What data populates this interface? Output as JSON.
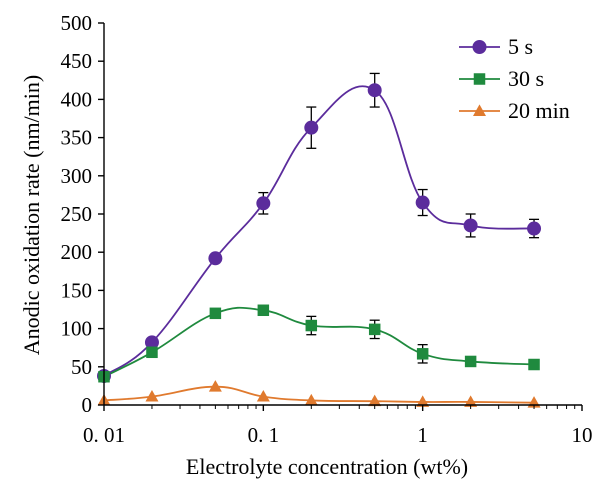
{
  "chart_data": {
    "type": "scatter",
    "x_scale": "log",
    "xlim": [
      0.01,
      10
    ],
    "ylim": [
      0,
      500
    ],
    "xlabel": "Electrolyte concentration (wt%)",
    "ylabel": "Anodic oxidation rate (nm/min)",
    "x_tick_labels": [
      "0. 01",
      "0. 1",
      "1",
      "10"
    ],
    "x_tick_values": [
      0.01,
      0.1,
      1,
      10
    ],
    "y_tick_values": [
      0,
      50,
      100,
      150,
      200,
      250,
      300,
      350,
      400,
      450,
      500
    ],
    "y_tick_labels": [
      "0",
      "50",
      "100",
      "150",
      "200",
      "250",
      "300",
      "350",
      "400",
      "450",
      "500"
    ],
    "grid": false,
    "legend_position": "top-right",
    "x": [
      0.01,
      0.02,
      0.05,
      0.1,
      0.2,
      0.5,
      1,
      2,
      5
    ],
    "series": [
      {
        "name": "5 s",
        "marker": "circle",
        "color": "#5b2c9c",
        "values": [
          38,
          82,
          192,
          264,
          363,
          412,
          265,
          235,
          231
        ],
        "errors": [
          0,
          0,
          0,
          14,
          27,
          22,
          17,
          15,
          12
        ]
      },
      {
        "name": "30 s",
        "marker": "square",
        "color": "#1f8a3e",
        "values": [
          37,
          69,
          120,
          124,
          104,
          99,
          67,
          57,
          53
        ],
        "errors": [
          0,
          0,
          0,
          0,
          12,
          12,
          12,
          0,
          0
        ]
      },
      {
        "name": "20 min",
        "marker": "triangle",
        "color": "#e07a2e",
        "values": [
          6,
          11,
          24,
          11,
          6,
          5,
          4,
          4,
          3
        ],
        "errors": [
          0,
          0,
          0,
          0,
          0,
          0,
          0,
          0,
          0
        ]
      }
    ]
  }
}
